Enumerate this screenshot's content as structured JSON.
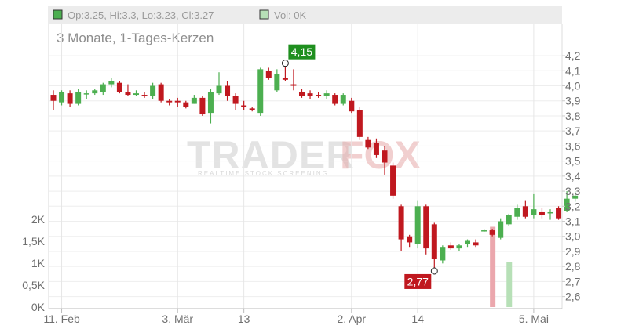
{
  "header": {
    "ohlc_text": "Op:3.25, Hi:3.3, Lo:3.23, Cl:3.27",
    "vol_text": "Vol: 0K",
    "up_color": "#4caf50",
    "vol_swatch_color": "#b7e0b7"
  },
  "chart_title": "3 Monate, 1-Tages-Kerzen",
  "watermark": {
    "word1": "TRADER",
    "word2": "FOX",
    "tagline": "REALTIME STOCK SCREENING"
  },
  "chart_data": {
    "type": "candlestick",
    "price_axis": {
      "min": 2.52,
      "max": 4.32,
      "ticks": [
        "4,2",
        "4,1",
        "4,0",
        "3,9",
        "3,8",
        "3,7",
        "3,6",
        "3,5",
        "3,4",
        "3,3",
        "3,2",
        "3,1",
        "3,0",
        "2,9",
        "2,8",
        "2,7",
        "2,6"
      ],
      "tick_values": [
        4.2,
        4.1,
        4.0,
        3.9,
        3.8,
        3.7,
        3.6,
        3.5,
        3.4,
        3.3,
        3.2,
        3.1,
        3.0,
        2.9,
        2.8,
        2.7,
        2.6
      ]
    },
    "volume_axis": {
      "max": 2250,
      "ticks": [
        "2K",
        "1,5K",
        "1K",
        "0,5K",
        "0K"
      ],
      "tick_values": [
        2000,
        1500,
        1000,
        500,
        0
      ]
    },
    "x_labels": [
      {
        "label": "11. Feb",
        "index": 1
      },
      {
        "label": "3. Mär",
        "index": 15
      },
      {
        "label": "13",
        "index": 23
      },
      {
        "label": "2. Apr",
        "index": 36
      },
      {
        "label": "14",
        "index": 44
      },
      {
        "label": "5. Mai",
        "index": 58
      }
    ],
    "colors": {
      "up": "#4caf50",
      "down": "#c0181f",
      "vol_up": "#b7e0b7",
      "vol_down": "#eba7ad"
    },
    "candles": [
      [
        3.94,
        3.9,
        3.97,
        3.84
      ],
      [
        3.89,
        3.96,
        3.97,
        3.87
      ],
      [
        3.95,
        3.88,
        3.97,
        3.86
      ],
      [
        3.88,
        3.96,
        3.98,
        3.87
      ],
      [
        3.95,
        3.95,
        3.97,
        3.91
      ],
      [
        3.95,
        3.97,
        3.98,
        3.94
      ],
      [
        3.96,
        4.01,
        4.02,
        3.94
      ],
      [
        4.01,
        4.03,
        4.05,
        3.99
      ],
      [
        4.02,
        3.96,
        4.03,
        3.95
      ],
      [
        3.96,
        3.94,
        4.01,
        3.93
      ],
      [
        3.94,
        3.95,
        3.97,
        3.93
      ],
      [
        3.94,
        3.93,
        3.96,
        3.92
      ],
      [
        3.93,
        4.0,
        4.02,
        3.91
      ],
      [
        4.01,
        3.9,
        4.02,
        3.89
      ],
      [
        3.9,
        3.89,
        3.91,
        3.87
      ],
      [
        3.9,
        3.89,
        3.92,
        3.86
      ],
      [
        3.89,
        3.86,
        3.9,
        3.85
      ],
      [
        3.88,
        3.92,
        3.94,
        3.88
      ],
      [
        3.92,
        3.81,
        3.93,
        3.8
      ],
      [
        3.82,
        3.96,
        3.98,
        3.75
      ],
      [
        3.95,
        4.0,
        4.09,
        3.94
      ],
      [
        4.0,
        3.93,
        4.03,
        3.9
      ],
      [
        3.93,
        3.88,
        3.95,
        3.84
      ],
      [
        3.87,
        3.86,
        3.9,
        3.84
      ],
      [
        3.85,
        3.84,
        3.86,
        3.83
      ],
      [
        3.82,
        4.11,
        4.12,
        3.8
      ],
      [
        4.1,
        4.05,
        4.12,
        4.04
      ],
      [
        3.97,
        4.08,
        4.11,
        3.96
      ],
      [
        4.05,
        4.04,
        4.15,
        4.03
      ],
      [
        4.01,
        4.0,
        4.11,
        3.97
      ],
      [
        3.96,
        3.93,
        3.98,
        3.92
      ],
      [
        3.95,
        3.93,
        3.97,
        3.91
      ],
      [
        3.94,
        3.93,
        3.96,
        3.92
      ],
      [
        3.93,
        3.95,
        3.97,
        3.91
      ],
      [
        3.94,
        3.88,
        3.95,
        3.87
      ],
      [
        3.88,
        3.94,
        3.95,
        3.87
      ],
      [
        3.9,
        3.83,
        3.92,
        3.82
      ],
      [
        3.84,
        3.66,
        3.86,
        3.64
      ],
      [
        3.64,
        3.59,
        3.66,
        3.58
      ],
      [
        3.62,
        3.54,
        3.65,
        3.52
      ],
      [
        3.57,
        3.49,
        3.6,
        3.41
      ],
      [
        3.47,
        3.27,
        3.49,
        3.25
      ],
      [
        3.2,
        2.98,
        3.21,
        2.9
      ],
      [
        3.0,
        2.96,
        3.01,
        2.93
      ],
      [
        2.95,
        3.2,
        3.24,
        2.92
      ],
      [
        3.2,
        2.92,
        3.21,
        2.88
      ],
      [
        3.08,
        2.85,
        3.09,
        2.77
      ],
      [
        2.84,
        2.93,
        2.94,
        2.82
      ],
      [
        2.94,
        2.92,
        2.96,
        2.91
      ],
      [
        2.92,
        2.94,
        2.95,
        2.9
      ],
      [
        2.95,
        2.97,
        2.98,
        2.93
      ],
      [
        2.96,
        2.94,
        2.98,
        2.93
      ],
      [
        3.04,
        3.04,
        3.05,
        3.03
      ],
      [
        3.04,
        3.01,
        3.05,
        3.0
      ],
      [
        2.99,
        3.1,
        3.12,
        2.98
      ],
      [
        3.08,
        3.14,
        3.15,
        3.07
      ],
      [
        3.13,
        3.19,
        3.21,
        3.11
      ],
      [
        3.2,
        3.13,
        3.24,
        3.12
      ],
      [
        3.14,
        3.18,
        3.28,
        3.12
      ],
      [
        3.16,
        3.14,
        3.19,
        3.12
      ],
      [
        3.16,
        3.16,
        3.18,
        3.11
      ],
      [
        3.19,
        3.12,
        3.2,
        3.11
      ],
      [
        3.17,
        3.25,
        3.3,
        3.16
      ],
      [
        3.25,
        3.27,
        3.3,
        3.23
      ]
    ],
    "volume": [
      {
        "index": 53,
        "value": 1830,
        "dir": "down"
      },
      {
        "index": 55,
        "value": 1020,
        "dir": "up"
      }
    ],
    "annotations": [
      {
        "label": "4,15",
        "value": 4.15,
        "index": 28,
        "type": "high",
        "bg": "#1f8f1f"
      },
      {
        "label": "2,77",
        "value": 2.77,
        "index": 46,
        "type": "low",
        "bg": "#c0181f"
      }
    ]
  }
}
